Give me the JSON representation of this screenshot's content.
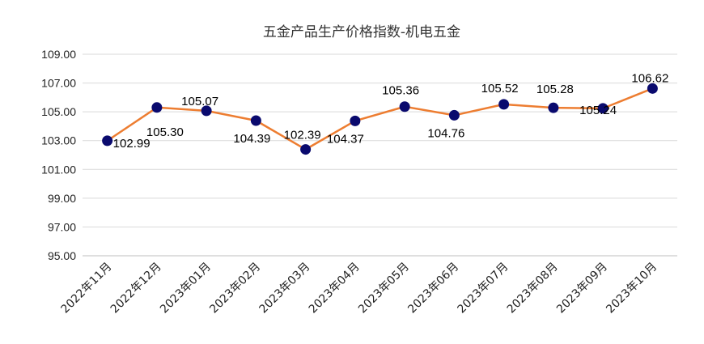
{
  "chart_data": {
    "type": "line",
    "title": "五金产品生产价格指数-机电五金",
    "xlabel": "",
    "ylabel": "",
    "ylim": [
      95.0,
      109.0
    ],
    "yticks": [
      "95.00",
      "97.00",
      "99.00",
      "101.00",
      "103.00",
      "105.00",
      "107.00",
      "109.00"
    ],
    "grid": true,
    "legend": "none",
    "categories": [
      "2022年11月",
      "2022年12月",
      "2023年01月",
      "2023年02月",
      "2023年03月",
      "2023年04月",
      "2023年05月",
      "2023年06月",
      "2023年07月",
      "2023年08月",
      "2023年09月",
      "2023年10月"
    ],
    "series": [
      {
        "values": [
          102.99,
          105.3,
          105.07,
          104.39,
          102.39,
          104.37,
          105.36,
          104.76,
          105.52,
          105.28,
          105.24,
          106.62
        ],
        "labels": [
          "102.99",
          "105.30",
          "105.07",
          "104.39",
          "102.39",
          "104.37",
          "105.36",
          "104.76",
          "105.52",
          "105.28",
          "105.24",
          "106.62"
        ]
      }
    ],
    "colors": {
      "line": "#ED7D31",
      "marker": "#0A0A6E",
      "grid": "#D9D9D9",
      "axis": "#BFBFBF"
    }
  }
}
